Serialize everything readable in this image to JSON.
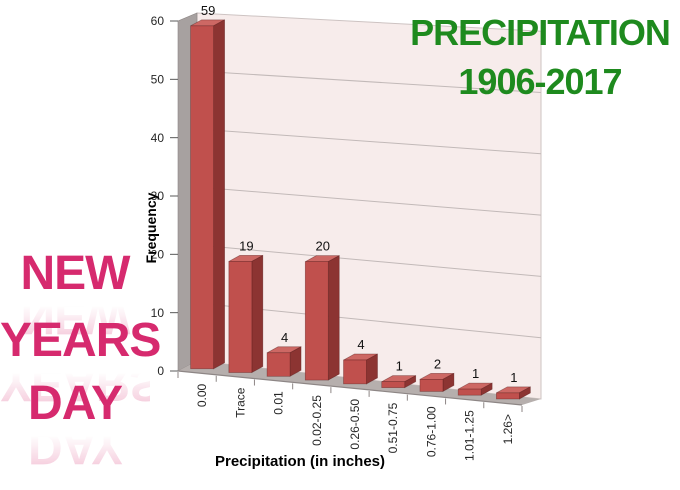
{
  "title": {
    "line1": "PRECIPITATION",
    "line2": "1906-2017",
    "color": "#1e8a1e"
  },
  "decoration": {
    "words": [
      "NEW",
      "YEARS",
      "DAY"
    ],
    "color": "#d62a6e"
  },
  "chart_data": {
    "type": "bar",
    "projection": "3d",
    "title": "PRECIPITATION 1906-2017",
    "categories": [
      "0.00",
      "Trace",
      "0.01",
      "0.02-0.25",
      "0.26-0.50",
      "0.51-0.75",
      "0.76-1.00",
      "1.01-1.25",
      "1.26>"
    ],
    "values": [
      59,
      19,
      4,
      20,
      4,
      1,
      2,
      1,
      1
    ],
    "xlabel": "Precipitation (in inches)",
    "ylabel": "Frequency",
    "ylim": [
      0,
      60
    ],
    "ytick_step": 10,
    "grid": true,
    "legend": false,
    "colors": {
      "bar_front": "#c0504d",
      "bar_side": "#8c3432",
      "bar_top": "#cd6864",
      "bar_edge": "rgba(80,20,20,0.45)",
      "wall": "#f7eceb",
      "wall_edge": "#cdc3c2",
      "gridline": "#c2b9b8",
      "side_wall": "#a7a1a0",
      "floor": "#b6afad",
      "floor_edge": "#8d8685",
      "tick": "#595959"
    }
  }
}
